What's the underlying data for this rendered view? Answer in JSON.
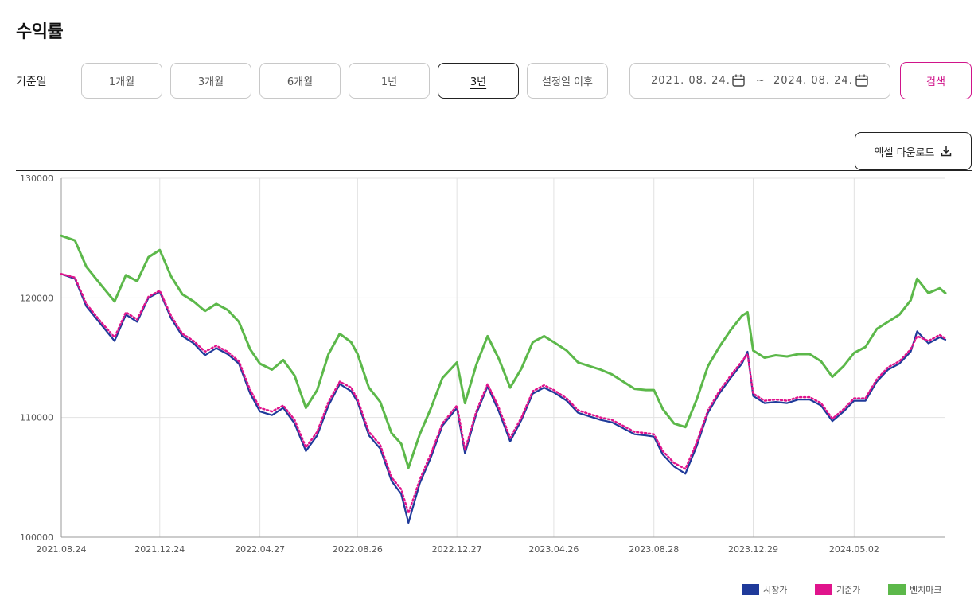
{
  "page": {
    "title": "수익률"
  },
  "filters": {
    "label": "기준일",
    "periods": [
      "1개월",
      "3개월",
      "6개월",
      "1년",
      "3년",
      "설정일 이후"
    ],
    "active_period": "3년",
    "date_from": "2021. 08. 24.",
    "date_separator": "~",
    "date_to": "2024. 08. 24.",
    "search_label": "검색"
  },
  "excel_label": "엑셀 다운로드",
  "icons": {
    "date_from": "calendar-icon",
    "date_to": "calendar-icon",
    "excel": "download-icon"
  },
  "colors": {
    "market": "#1f3a9a",
    "nav": "#e0148c",
    "benchmark": "#5cb84a",
    "accent": "#d0148a"
  },
  "chart_data": {
    "type": "line",
    "x_ticks": [
      "2021.08.24",
      "2021.12.24",
      "2022.04.27",
      "2022.08.26",
      "2022.12.27",
      "2023.04.26",
      "2023.08.28",
      "2023.12.29",
      "2024.05.02"
    ],
    "x_range": [
      "2021.08.24",
      "2024.08.23"
    ],
    "ylim": [
      100000,
      130000
    ],
    "y_ticks": [
      100000,
      110000,
      120000,
      130000
    ],
    "grid": true,
    "legend_position": "bottom-right",
    "series": [
      {
        "name": "시장가",
        "color": "#1f3a9a",
        "style": "solid",
        "points": [
          [
            "2021.08.24",
            122000
          ],
          [
            "2021.09.10",
            121600
          ],
          [
            "2021.09.24",
            119300
          ],
          [
            "2021.10.12",
            117800
          ],
          [
            "2021.10.29",
            116400
          ],
          [
            "2021.11.12",
            118600
          ],
          [
            "2021.11.26",
            118000
          ],
          [
            "2021.12.10",
            120000
          ],
          [
            "2021.12.24",
            120500
          ],
          [
            "2022.01.07",
            118300
          ],
          [
            "2022.01.21",
            116800
          ],
          [
            "2022.02.04",
            116200
          ],
          [
            "2022.02.18",
            115200
          ],
          [
            "2022.03.04",
            115800
          ],
          [
            "2022.03.18",
            115300
          ],
          [
            "2022.04.01",
            114500
          ],
          [
            "2022.04.15",
            112000
          ],
          [
            "2022.04.27",
            110500
          ],
          [
            "2022.05.12",
            110200
          ],
          [
            "2022.05.26",
            110800
          ],
          [
            "2022.06.09",
            109500
          ],
          [
            "2022.06.23",
            107200
          ],
          [
            "2022.07.07",
            108500
          ],
          [
            "2022.07.21",
            111000
          ],
          [
            "2022.08.04",
            112800
          ],
          [
            "2022.08.18",
            112200
          ],
          [
            "2022.08.26",
            111300
          ],
          [
            "2022.09.09",
            108500
          ],
          [
            "2022.09.23",
            107400
          ],
          [
            "2022.10.07",
            104700
          ],
          [
            "2022.10.19",
            103600
          ],
          [
            "2022.10.28",
            101200
          ],
          [
            "2022.11.11",
            104500
          ],
          [
            "2022.11.25",
            106700
          ],
          [
            "2022.12.09",
            109300
          ],
          [
            "2022.12.27",
            110800
          ],
          [
            "2023.01.06",
            107000
          ],
          [
            "2023.01.20",
            110300
          ],
          [
            "2023.02.03",
            112600
          ],
          [
            "2023.02.17",
            110500
          ],
          [
            "2023.03.03",
            108000
          ],
          [
            "2023.03.17",
            109800
          ],
          [
            "2023.03.31",
            112000
          ],
          [
            "2023.04.14",
            112500
          ],
          [
            "2023.04.26",
            112100
          ],
          [
            "2023.05.12",
            111400
          ],
          [
            "2023.05.26",
            110400
          ],
          [
            "2023.06.09",
            110100
          ],
          [
            "2023.06.23",
            109800
          ],
          [
            "2023.07.07",
            109600
          ],
          [
            "2023.07.21",
            109100
          ],
          [
            "2023.08.04",
            108600
          ],
          [
            "2023.08.18",
            108500
          ],
          [
            "2023.08.28",
            108400
          ],
          [
            "2023.09.08",
            106900
          ],
          [
            "2023.09.22",
            105900
          ],
          [
            "2023.10.06",
            105300
          ],
          [
            "2023.10.20",
            107600
          ],
          [
            "2023.11.03",
            110400
          ],
          [
            "2023.11.17",
            112000
          ],
          [
            "2023.12.01",
            113300
          ],
          [
            "2023.12.15",
            114500
          ],
          [
            "2023.12.22",
            115500
          ],
          [
            "2023.12.29",
            111800
          ],
          [
            "2024.01.12",
            111200
          ],
          [
            "2024.01.26",
            111300
          ],
          [
            "2024.02.09",
            111200
          ],
          [
            "2024.02.23",
            111500
          ],
          [
            "2024.03.08",
            111500
          ],
          [
            "2024.03.22",
            111000
          ],
          [
            "2024.04.05",
            109700
          ],
          [
            "2024.04.19",
            110500
          ],
          [
            "2024.05.02",
            111400
          ],
          [
            "2024.05.16",
            111400
          ],
          [
            "2024.05.30",
            113000
          ],
          [
            "2024.06.13",
            114000
          ],
          [
            "2024.06.27",
            114500
          ],
          [
            "2024.07.11",
            115500
          ],
          [
            "2024.07.19",
            117200
          ],
          [
            "2024.08.02",
            116200
          ],
          [
            "2024.08.16",
            116700
          ],
          [
            "2024.08.23",
            116500
          ]
        ]
      },
      {
        "name": "기준가",
        "color": "#e0148c",
        "style": "dotted",
        "points": [
          [
            "2021.08.24",
            122000
          ],
          [
            "2021.09.10",
            121700
          ],
          [
            "2021.09.24",
            119500
          ],
          [
            "2021.10.12",
            118000
          ],
          [
            "2021.10.29",
            116700
          ],
          [
            "2021.11.12",
            118800
          ],
          [
            "2021.11.26",
            118200
          ],
          [
            "2021.12.10",
            120100
          ],
          [
            "2021.12.24",
            120600
          ],
          [
            "2022.01.07",
            118500
          ],
          [
            "2022.01.21",
            117000
          ],
          [
            "2022.02.04",
            116400
          ],
          [
            "2022.02.18",
            115500
          ],
          [
            "2022.03.04",
            116000
          ],
          [
            "2022.03.18",
            115500
          ],
          [
            "2022.04.01",
            114700
          ],
          [
            "2022.04.15",
            112300
          ],
          [
            "2022.04.27",
            110800
          ],
          [
            "2022.05.12",
            110500
          ],
          [
            "2022.05.26",
            111000
          ],
          [
            "2022.06.09",
            109800
          ],
          [
            "2022.06.23",
            107500
          ],
          [
            "2022.07.07",
            108800
          ],
          [
            "2022.07.21",
            111300
          ],
          [
            "2022.08.04",
            113000
          ],
          [
            "2022.08.18",
            112500
          ],
          [
            "2022.08.26",
            111500
          ],
          [
            "2022.09.09",
            108800
          ],
          [
            "2022.09.23",
            107700
          ],
          [
            "2022.10.07",
            105000
          ],
          [
            "2022.10.19",
            104000
          ],
          [
            "2022.10.28",
            102000
          ],
          [
            "2022.11.11",
            104800
          ],
          [
            "2022.11.25",
            107000
          ],
          [
            "2022.12.09",
            109500
          ],
          [
            "2022.12.27",
            111000
          ],
          [
            "2023.01.06",
            107300
          ],
          [
            "2023.01.20",
            110500
          ],
          [
            "2023.02.03",
            112800
          ],
          [
            "2023.02.17",
            110800
          ],
          [
            "2023.03.03",
            108300
          ],
          [
            "2023.03.17",
            110000
          ],
          [
            "2023.03.31",
            112200
          ],
          [
            "2023.04.14",
            112700
          ],
          [
            "2023.04.26",
            112300
          ],
          [
            "2023.05.12",
            111600
          ],
          [
            "2023.05.26",
            110600
          ],
          [
            "2023.06.09",
            110300
          ],
          [
            "2023.06.23",
            110000
          ],
          [
            "2023.07.07",
            109800
          ],
          [
            "2023.07.21",
            109300
          ],
          [
            "2023.08.04",
            108800
          ],
          [
            "2023.08.18",
            108700
          ],
          [
            "2023.08.28",
            108600
          ],
          [
            "2023.09.08",
            107200
          ],
          [
            "2023.09.22",
            106200
          ],
          [
            "2023.10.06",
            105700
          ],
          [
            "2023.10.20",
            107900
          ],
          [
            "2023.11.03",
            110600
          ],
          [
            "2023.11.17",
            112200
          ],
          [
            "2023.12.01",
            113500
          ],
          [
            "2023.12.15",
            114700
          ],
          [
            "2023.12.22",
            115300
          ],
          [
            "2023.12.29",
            112000
          ],
          [
            "2024.01.12",
            111400
          ],
          [
            "2024.01.26",
            111500
          ],
          [
            "2024.02.09",
            111400
          ],
          [
            "2024.02.23",
            111700
          ],
          [
            "2024.03.08",
            111700
          ],
          [
            "2024.03.22",
            111200
          ],
          [
            "2024.04.05",
            109900
          ],
          [
            "2024.04.19",
            110700
          ],
          [
            "2024.05.02",
            111600
          ],
          [
            "2024.05.16",
            111600
          ],
          [
            "2024.05.30",
            113200
          ],
          [
            "2024.06.13",
            114200
          ],
          [
            "2024.06.27",
            114700
          ],
          [
            "2024.07.11",
            115700
          ],
          [
            "2024.07.19",
            116800
          ],
          [
            "2024.08.02",
            116400
          ],
          [
            "2024.08.16",
            116900
          ],
          [
            "2024.08.23",
            116600
          ]
        ]
      },
      {
        "name": "벤치마크",
        "color": "#5cb84a",
        "style": "solid",
        "points": [
          [
            "2021.08.24",
            125200
          ],
          [
            "2021.09.10",
            124800
          ],
          [
            "2021.09.24",
            122600
          ],
          [
            "2021.10.12",
            121100
          ],
          [
            "2021.10.29",
            119700
          ],
          [
            "2021.11.12",
            121900
          ],
          [
            "2021.11.26",
            121400
          ],
          [
            "2021.12.10",
            123400
          ],
          [
            "2021.12.24",
            124000
          ],
          [
            "2022.01.07",
            121800
          ],
          [
            "2022.01.21",
            120300
          ],
          [
            "2022.02.04",
            119700
          ],
          [
            "2022.02.18",
            118900
          ],
          [
            "2022.03.04",
            119500
          ],
          [
            "2022.03.18",
            119000
          ],
          [
            "2022.04.01",
            118000
          ],
          [
            "2022.04.15",
            115700
          ],
          [
            "2022.04.27",
            114500
          ],
          [
            "2022.05.12",
            114000
          ],
          [
            "2022.05.26",
            114800
          ],
          [
            "2022.06.09",
            113500
          ],
          [
            "2022.06.23",
            110800
          ],
          [
            "2022.07.07",
            112300
          ],
          [
            "2022.07.21",
            115300
          ],
          [
            "2022.08.04",
            117000
          ],
          [
            "2022.08.18",
            116300
          ],
          [
            "2022.08.26",
            115300
          ],
          [
            "2022.09.09",
            112500
          ],
          [
            "2022.09.23",
            111300
          ],
          [
            "2022.10.07",
            108700
          ],
          [
            "2022.10.19",
            107800
          ],
          [
            "2022.10.28",
            105800
          ],
          [
            "2022.11.11",
            108600
          ],
          [
            "2022.11.25",
            110800
          ],
          [
            "2022.12.09",
            113300
          ],
          [
            "2022.12.27",
            114600
          ],
          [
            "2023.01.06",
            111200
          ],
          [
            "2023.01.20",
            114400
          ],
          [
            "2023.02.03",
            116800
          ],
          [
            "2023.02.17",
            114900
          ],
          [
            "2023.03.03",
            112500
          ],
          [
            "2023.03.17",
            114100
          ],
          [
            "2023.03.31",
            116300
          ],
          [
            "2023.04.14",
            116800
          ],
          [
            "2023.04.26",
            116300
          ],
          [
            "2023.05.12",
            115600
          ],
          [
            "2023.05.26",
            114600
          ],
          [
            "2023.06.09",
            114300
          ],
          [
            "2023.06.23",
            114000
          ],
          [
            "2023.07.07",
            113600
          ],
          [
            "2023.07.21",
            113000
          ],
          [
            "2023.08.04",
            112400
          ],
          [
            "2023.08.18",
            112300
          ],
          [
            "2023.08.28",
            112300
          ],
          [
            "2023.09.08",
            110700
          ],
          [
            "2023.09.22",
            109500
          ],
          [
            "2023.10.06",
            109200
          ],
          [
            "2023.10.20",
            111500
          ],
          [
            "2023.11.03",
            114300
          ],
          [
            "2023.11.17",
            115900
          ],
          [
            "2023.12.01",
            117300
          ],
          [
            "2023.12.15",
            118500
          ],
          [
            "2023.12.22",
            118800
          ],
          [
            "2023.12.29",
            115600
          ],
          [
            "2024.01.12",
            115000
          ],
          [
            "2024.01.26",
            115200
          ],
          [
            "2024.02.09",
            115100
          ],
          [
            "2024.02.23",
            115300
          ],
          [
            "2024.03.08",
            115300
          ],
          [
            "2024.03.22",
            114700
          ],
          [
            "2024.04.05",
            113400
          ],
          [
            "2024.04.19",
            114300
          ],
          [
            "2024.05.02",
            115400
          ],
          [
            "2024.05.16",
            115900
          ],
          [
            "2024.05.30",
            117400
          ],
          [
            "2024.06.13",
            118000
          ],
          [
            "2024.06.27",
            118600
          ],
          [
            "2024.07.11",
            119800
          ],
          [
            "2024.07.19",
            121600
          ],
          [
            "2024.08.02",
            120400
          ],
          [
            "2024.08.16",
            120800
          ],
          [
            "2024.08.23",
            120400
          ]
        ]
      }
    ]
  }
}
